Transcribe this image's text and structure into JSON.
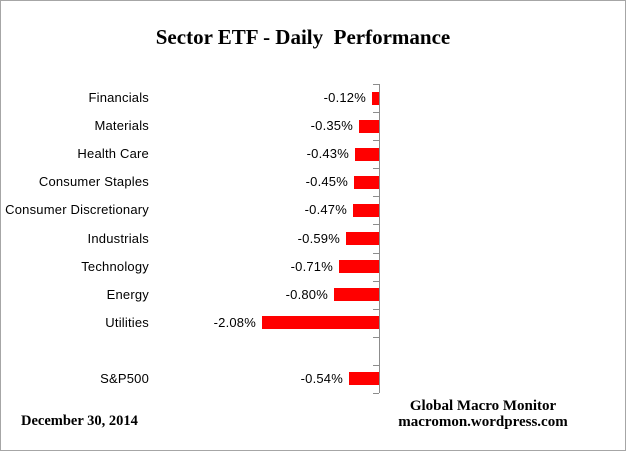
{
  "title": "Sector ETF - Daily  Performance",
  "footer": {
    "date": "December 30, 2014",
    "credit_line1": "Global Macro Monitor",
    "credit_line2": "macromon.wordpress.com"
  },
  "colors": {
    "bar": "#FF0000",
    "axis": "#8C8C8C",
    "text": "#000000",
    "frame_border": "#A6A6A6"
  },
  "chart_data": {
    "type": "bar",
    "orientation": "horizontal",
    "title": "Sector ETF - Daily  Performance",
    "categories": [
      "Financials",
      "Materials",
      "Health Care",
      "Consumer Staples",
      "Consumer Discretionary",
      "Industrials",
      "Technology",
      "Energy",
      "Utilities",
      "",
      "S&P500"
    ],
    "values": [
      -0.12,
      -0.35,
      -0.43,
      -0.45,
      -0.47,
      -0.59,
      -0.71,
      -0.8,
      -2.08,
      null,
      -0.54
    ],
    "data_labels": [
      "-0.12%",
      "-0.35%",
      "-0.43%",
      "-0.45%",
      "-0.47%",
      "-0.59%",
      "-0.71%",
      "-0.80%",
      "-2.08%",
      "",
      "-0.54%"
    ],
    "bar_color": "#FF0000",
    "axis_color": "#8C8C8C",
    "xlim": [
      -2.5,
      0
    ],
    "value_axis_labels_visible": false,
    "grid": false,
    "legend": false,
    "data_label_position": "outside-end-left"
  }
}
